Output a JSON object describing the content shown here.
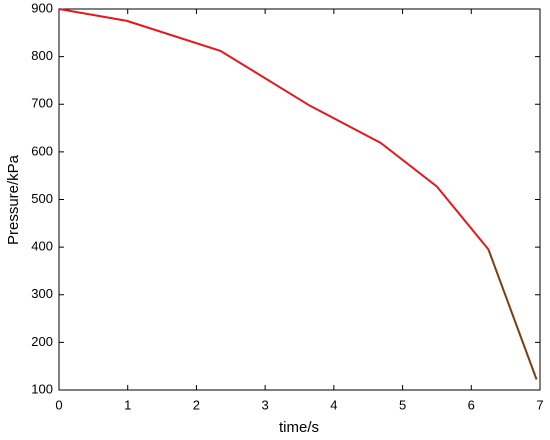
{
  "chart_data": {
    "type": "line",
    "x_label": "time/s",
    "y_label": "Pressure/kPa",
    "x": [
      0,
      0.99,
      2.35,
      3.65,
      4.68,
      5.5,
      6.25,
      6.95
    ],
    "series": [
      {
        "color": "#e31a1c",
        "values": [
          900,
          875,
          812,
          697,
          619,
          527,
          395,
          null
        ]
      },
      {
        "color": "#7a3f12",
        "values": [
          null,
          null,
          null,
          null,
          null,
          null,
          395,
          122
        ]
      }
    ],
    "xlim": [
      0,
      7
    ],
    "xticks": [
      0,
      1,
      2,
      3,
      4,
      5,
      6,
      7
    ],
    "ylim": [
      100,
      900
    ],
    "yticks": [
      100,
      200,
      300,
      400,
      500,
      600,
      700,
      800,
      900
    ]
  }
}
